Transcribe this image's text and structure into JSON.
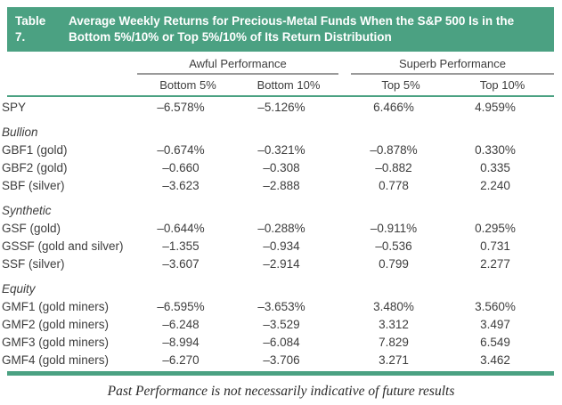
{
  "banner": {
    "label": "Table 7.",
    "title_line1": "Average Weekly Returns for Precious-Metal Funds When the S&P 500 Is in the",
    "title_line2": "Bottom 5%/10% or Top 5%/10% of Its Return Distribution"
  },
  "table": {
    "group_headers": [
      {
        "label": "Awful Performance"
      },
      {
        "label": "Superb Performance"
      }
    ],
    "columns": [
      "Bottom 5%",
      "Bottom 10%",
      "Top 5%",
      "Top 10%"
    ],
    "rows": [
      {
        "type": "data",
        "label": "SPY",
        "values": [
          "–6.578%",
          "–5.126%",
          "6.466%",
          "4.959%"
        ]
      },
      {
        "type": "section",
        "label": "Bullion"
      },
      {
        "type": "data",
        "label": "GBF1 (gold)",
        "values": [
          "–0.674%",
          "–0.321%",
          "–0.878%",
          "0.330%"
        ]
      },
      {
        "type": "data",
        "label": "GBF2 (gold)",
        "values": [
          "–0.660",
          "–0.308",
          "–0.882",
          "0.335"
        ]
      },
      {
        "type": "data",
        "label": "SBF (silver)",
        "values": [
          "–3.623",
          "–2.888",
          "0.778",
          "2.240"
        ]
      },
      {
        "type": "section",
        "label": "Synthetic"
      },
      {
        "type": "data",
        "label": "GSF (gold)",
        "values": [
          "–0.644%",
          "–0.288%",
          "–0.911%",
          "0.295%"
        ]
      },
      {
        "type": "data",
        "label": "GSSF (gold and silver)",
        "values": [
          "–1.355",
          "–0.934",
          "–0.536",
          "0.731"
        ]
      },
      {
        "type": "data",
        "label": "SSF (silver)",
        "values": [
          "–3.607",
          "–2.914",
          "0.799",
          "2.277"
        ]
      },
      {
        "type": "section",
        "label": "Equity"
      },
      {
        "type": "data",
        "label": "GMF1 (gold miners)",
        "values": [
          "–6.595%",
          "–3.653%",
          "3.480%",
          "3.560%"
        ]
      },
      {
        "type": "data",
        "label": "GMF2 (gold miners)",
        "values": [
          "–6.248",
          "–3.529",
          "3.312",
          "3.497"
        ]
      },
      {
        "type": "data",
        "label": "GMF3 (gold miners)",
        "values": [
          "–8.994",
          "–6.084",
          "7.829",
          "6.549"
        ]
      },
      {
        "type": "data",
        "label": "GMF4 (gold miners)",
        "values": [
          "–6.270",
          "–3.706",
          "3.271",
          "3.462"
        ]
      }
    ]
  },
  "caption": "Past Performance is not necessarily indicative of future results",
  "colors": {
    "accent_green": "#4ba182",
    "rule_gray": "#9a9a9a",
    "text": "#3d3d3d"
  }
}
